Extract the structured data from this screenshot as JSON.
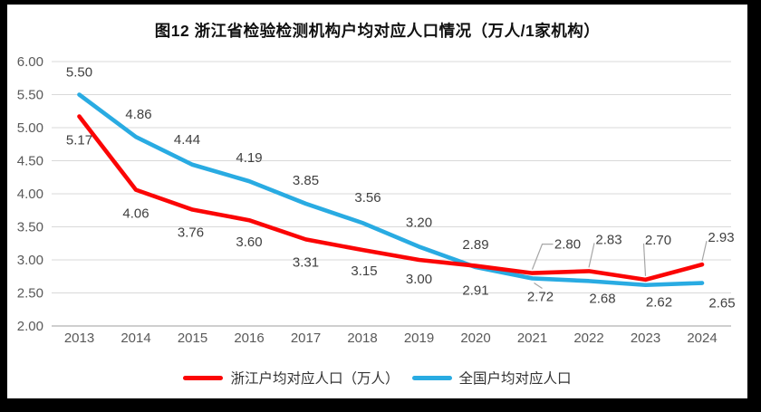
{
  "title": "图12 浙江省检验检测机构户均对应人口情况（万人/1家机构）",
  "chart_data": {
    "type": "line",
    "title": "图12 浙江省检验检测机构户均对应人口情况（万人/1家机构）",
    "categories": [
      "2013",
      "2014",
      "2015",
      "2016",
      "2017",
      "2018",
      "2019",
      "2020",
      "2021",
      "2022",
      "2023",
      "2024"
    ],
    "yticks": [
      "6.00",
      "5.50",
      "5.00",
      "4.50",
      "4.00",
      "3.50",
      "3.00",
      "2.50",
      "2.00"
    ],
    "ylim": [
      2.0,
      6.0
    ],
    "grid": true,
    "legend_position": "bottom",
    "colors": {
      "grid": "#d9d9d9",
      "axis": "#bfbfbf",
      "leader": "#a6a6a6",
      "tick_text": "#595959",
      "label_text": "#404040"
    },
    "series": [
      {
        "name": "浙江户均对应人口（万人）",
        "color": "#fb0505",
        "values": [
          5.17,
          4.06,
          3.76,
          3.6,
          3.31,
          3.15,
          3.0,
          2.91,
          2.8,
          2.83,
          2.7,
          2.93
        ],
        "labels": [
          "5.17",
          "4.06",
          "3.76",
          "3.60",
          "3.31",
          "3.15",
          "3.00",
          "2.91",
          "2.80",
          "2.83",
          "2.70",
          "2.93"
        ],
        "label_dx": [
          0,
          0,
          -2,
          0,
          0,
          2,
          0,
          0,
          39,
          22,
          14,
          21
        ],
        "label_dy": [
          26,
          26,
          25,
          24,
          25,
          23,
          21,
          27,
          -32,
          -35,
          -44,
          -30
        ],
        "label_leader": [
          false,
          false,
          false,
          false,
          false,
          false,
          false,
          false,
          true,
          true,
          true,
          true
        ]
      },
      {
        "name": "全国户均对应人口",
        "color": "#29abe2",
        "values": [
          5.5,
          4.86,
          4.44,
          4.19,
          3.85,
          3.56,
          3.2,
          2.89,
          2.72,
          2.68,
          2.62,
          2.65
        ],
        "labels": [
          "5.50",
          "4.86",
          "4.44",
          "4.19",
          "3.85",
          "3.56",
          "3.20",
          "2.89",
          "2.72",
          "2.68",
          "2.62",
          "2.65"
        ],
        "label_dx": [
          0,
          3,
          -6,
          0,
          0,
          6,
          0,
          0,
          9,
          15,
          15,
          22
        ],
        "label_dy": [
          -25,
          -25,
          -28,
          -26,
          -26,
          -28,
          -27,
          -25,
          20,
          19,
          19,
          22
        ],
        "label_leader": [
          false,
          false,
          false,
          false,
          false,
          false,
          false,
          false,
          true,
          false,
          false,
          false
        ]
      }
    ]
  }
}
